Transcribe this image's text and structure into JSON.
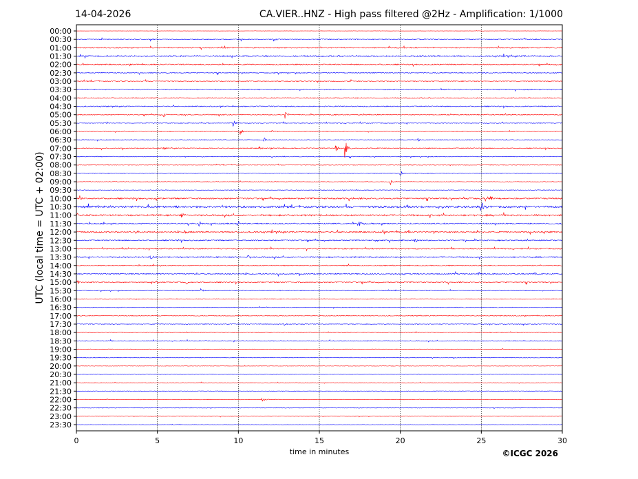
{
  "chart_data": {
    "type": "line",
    "title_left": "14-04-2026",
    "title": "CA.VIER..HNZ - High pass filtered @2Hz - Amplification: 1/1000",
    "xlabel": "time in minutes",
    "ylabel": "UTC (local time = UTC + 02:00)",
    "copyright": "©ICGC 2026",
    "xlim": [
      0,
      30
    ],
    "x_ticks": [
      0,
      5,
      10,
      15,
      20,
      25,
      30
    ],
    "x_tick_labels": [
      "0",
      "5",
      "10",
      "15",
      "20",
      "25",
      "30"
    ],
    "grid": "vertical dotted at x ticks",
    "series_colors": [
      "#ff0000",
      "#0000ff"
    ],
    "y_tick_labels": [
      "00:00",
      "00:30",
      "01:00",
      "01:30",
      "02:00",
      "02:30",
      "03:00",
      "03:30",
      "04:00",
      "04:30",
      "05:00",
      "05:30",
      "06:00",
      "06:30",
      "07:00",
      "07:30",
      "08:00",
      "08:30",
      "09:00",
      "09:30",
      "10:00",
      "10:30",
      "11:00",
      "11:30",
      "12:00",
      "12:30",
      "13:00",
      "13:30",
      "14:00",
      "14:30",
      "15:00",
      "15:30",
      "16:00",
      "16:30",
      "17:00",
      "17:30",
      "18:00",
      "18:30",
      "19:00",
      "19:30",
      "20:00",
      "20:30",
      "21:00",
      "21:30",
      "22:00",
      "22:30",
      "23:00",
      "23:30"
    ],
    "noise_level": [
      0.3,
      1,
      1.2,
      1.5,
      1.2,
      1,
      1.1,
      1,
      1,
      1.1,
      1,
      0.8,
      0.8,
      0.8,
      1,
      0.8,
      0.7,
      0.7,
      0.7,
      0.7,
      1.6,
      2.2,
      1.8,
      1.4,
      1.6,
      1.3,
      1.2,
      1.4,
      1,
      1.3,
      1.2,
      0.8,
      0.8,
      0.7,
      0.8,
      0.8,
      0.7,
      0.8,
      0.6,
      0.6,
      0.5,
      0.4,
      0.5,
      0.6,
      0.6,
      0.5,
      0.5,
      0.4
    ],
    "events": [
      {
        "row": "05:00",
        "minute": 5.4,
        "amplitude": 4
      },
      {
        "row": "05:00",
        "minute": 12.9,
        "amplitude": 6
      },
      {
        "row": "05:30",
        "minute": 9.7,
        "amplitude": 5
      },
      {
        "row": "06:00",
        "minute": 10.1,
        "amplitude": 6
      },
      {
        "row": "06:00",
        "minute": 12.1,
        "amplitude": 3
      },
      {
        "row": "06:30",
        "minute": 11.6,
        "amplitude": 5
      },
      {
        "row": "06:30",
        "minute": 21.1,
        "amplitude": 3
      },
      {
        "row": "07:00",
        "minute": 5.4,
        "amplitude": 3
      },
      {
        "row": "07:00",
        "minute": 11.3,
        "amplitude": 3
      },
      {
        "row": "07:00",
        "minute": 16.0,
        "amplitude": 6
      },
      {
        "row": "07:00",
        "minute": 16.6,
        "amplitude": 14
      },
      {
        "row": "08:30",
        "minute": 20.0,
        "amplitude": 5
      },
      {
        "row": "09:00",
        "minute": 19.4,
        "amplitude": 5
      },
      {
        "row": "10:00",
        "minute": 0.2,
        "amplitude": 5
      },
      {
        "row": "10:00",
        "minute": 25.0,
        "amplitude": 4
      },
      {
        "row": "10:00",
        "minute": 25.6,
        "amplitude": 3
      },
      {
        "row": "10:30",
        "minute": 25.0,
        "amplitude": 8
      },
      {
        "row": "11:00",
        "minute": 0.1,
        "amplitude": 3
      },
      {
        "row": "11:00",
        "minute": 6.5,
        "amplitude": 3
      },
      {
        "row": "11:30",
        "minute": 7.6,
        "amplitude": 4
      },
      {
        "row": "11:30",
        "minute": 17.5,
        "amplitude": 4
      },
      {
        "row": "11:30",
        "minute": 18.9,
        "amplitude": 3
      },
      {
        "row": "12:00",
        "minute": 3.7,
        "amplitude": 3
      },
      {
        "row": "12:00",
        "minute": 6.7,
        "amplitude": 3
      },
      {
        "row": "12:30",
        "minute": 18.5,
        "amplitude": 3
      },
      {
        "row": "12:30",
        "minute": 20.9,
        "amplitude": 3
      },
      {
        "row": "13:30",
        "minute": 4.6,
        "amplitude": 4
      },
      {
        "row": "13:30",
        "minute": 10.6,
        "amplitude": 3
      },
      {
        "row": "14:30",
        "minute": 24.8,
        "amplitude": 3
      },
      {
        "row": "14:30",
        "minute": 28.3,
        "amplitude": 3
      },
      {
        "row": "15:00",
        "minute": 0.1,
        "amplitude": 3
      },
      {
        "row": "15:00",
        "minute": 6.8,
        "amplitude": 3
      },
      {
        "row": "15:30",
        "minute": 7.7,
        "amplitude": 3
      },
      {
        "row": "17:30",
        "minute": 12.8,
        "amplitude": 3
      },
      {
        "row": "22:00",
        "minute": 11.5,
        "amplitude": 4
      }
    ]
  }
}
